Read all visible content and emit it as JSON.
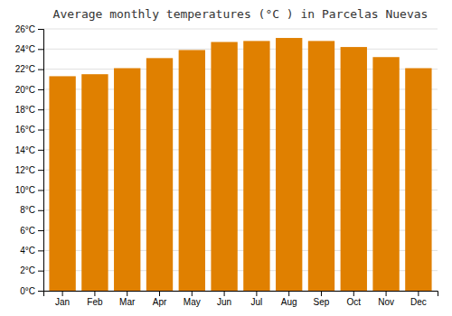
{
  "chart_data": {
    "type": "bar",
    "title": "Average monthly temperatures (°C ) in Parcelas Nuevas",
    "categories": [
      "Jan",
      "Feb",
      "Mar",
      "Apr",
      "May",
      "Jun",
      "Jul",
      "Aug",
      "Sep",
      "Oct",
      "Nov",
      "Dec"
    ],
    "values": [
      21.3,
      21.5,
      22.1,
      23.1,
      23.9,
      24.7,
      24.8,
      25.1,
      24.8,
      24.2,
      23.2,
      22.1
    ],
    "color": "#E08000",
    "ylim": [
      0,
      26
    ],
    "yticks": [
      {
        "value": 0,
        "label": "0°C"
      },
      {
        "value": 2,
        "label": "2°C"
      },
      {
        "value": 4,
        "label": "4°C"
      },
      {
        "value": 6,
        "label": "6°C"
      },
      {
        "value": 8,
        "label": "8°C"
      },
      {
        "value": 10,
        "label": "10°C"
      },
      {
        "value": 12,
        "label": "12°C"
      },
      {
        "value": 14,
        "label": "14°C"
      },
      {
        "value": 16,
        "label": "16°C"
      },
      {
        "value": 18,
        "label": "18°C"
      },
      {
        "value": 20,
        "label": "20°C"
      },
      {
        "value": 22,
        "label": "22°C"
      },
      {
        "value": 24,
        "label": "24°C"
      },
      {
        "value": 26,
        "label": "26°C"
      }
    ],
    "grid": true
  }
}
